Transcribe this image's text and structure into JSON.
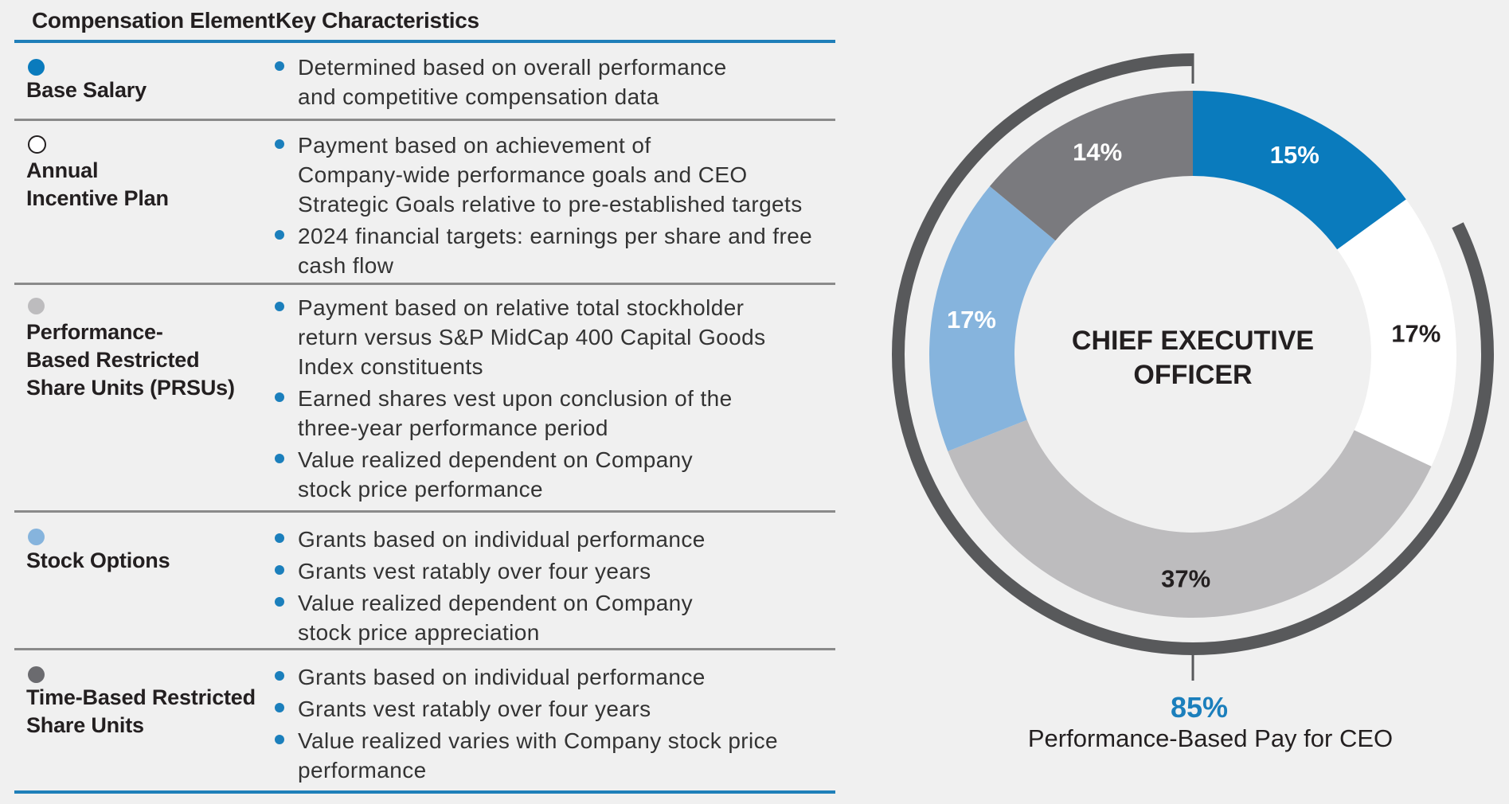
{
  "table": {
    "headers": {
      "element": "Compensation Element",
      "characteristics": "Key Characteristics"
    },
    "rows": [
      {
        "name": "Base Salary",
        "dot_color": "#0a7bbd",
        "dot_style": "filled",
        "bullets": [
          "Determined based on overall performance\nand competitive compensation data"
        ]
      },
      {
        "name": "Annual\nIncentive Plan",
        "dot_color": "#ffffff",
        "dot_style": "outline",
        "bullets": [
          "Payment based on achievement of\nCompany-wide performance goals and CEO\nStrategic Goals relative to pre-established targets",
          "2024 financial targets: earnings per share and free\ncash flow"
        ]
      },
      {
        "name": "Performance-\nBased Restricted\nShare Units (PRSUs)",
        "dot_color": "#bdbcbe",
        "dot_style": "filled",
        "bullets": [
          "Payment based on relative total stockholder\nreturn versus S&P MidCap 400 Capital Goods\nIndex constituents",
          "Earned shares vest upon conclusion of the\nthree-year performance period",
          "Value realized dependent on Company\nstock price performance"
        ]
      },
      {
        "name": "Stock Options",
        "dot_color": "#86b4dd",
        "dot_style": "filled",
        "bullets": [
          "Grants based on individual performance",
          "Grants vest ratably over four years",
          "Value realized dependent on Company\nstock price appreciation"
        ]
      },
      {
        "name": "Time-Based Restricted\nShare Units",
        "dot_color": "#6b6b6f",
        "dot_style": "filled",
        "bullets": [
          "Grants based on individual performance",
          "Grants vest ratably over four years",
          "Value realized varies with Company stock price\nperformance"
        ]
      }
    ]
  },
  "chart_data": {
    "type": "pie",
    "title": "CHIEF EXECUTIVE\nOFFICER",
    "title_lines": [
      "CHIEF EXECUTIVE",
      "OFFICER"
    ],
    "segments": [
      {
        "name": "Base Salary",
        "value": 15,
        "label": "15%",
        "color": "#0a7bbd",
        "label_color": "#ffffff"
      },
      {
        "name": "Annual Incentive Plan",
        "value": 17,
        "label": "17%",
        "color": "#ffffff",
        "label_color": "#231f20"
      },
      {
        "name": "Performance-Based Restricted Share Units (PRSUs)",
        "value": 37,
        "label": "37%",
        "color": "#bdbcbe",
        "label_color": "#231f20"
      },
      {
        "name": "Stock Options",
        "value": 17,
        "label": "17%",
        "color": "#86b4dd",
        "label_color": "#ffffff"
      },
      {
        "name": "Time-Based Restricted Share Units",
        "value": 14,
        "label": "14%",
        "color": "#7a7a7e",
        "label_color": "#ffffff"
      }
    ],
    "outer_bracket": {
      "value": 85,
      "label": "85%",
      "caption": "Performance-Based Pay for CEO",
      "color": "#58595b",
      "label_color": "#1b7fbc"
    }
  }
}
